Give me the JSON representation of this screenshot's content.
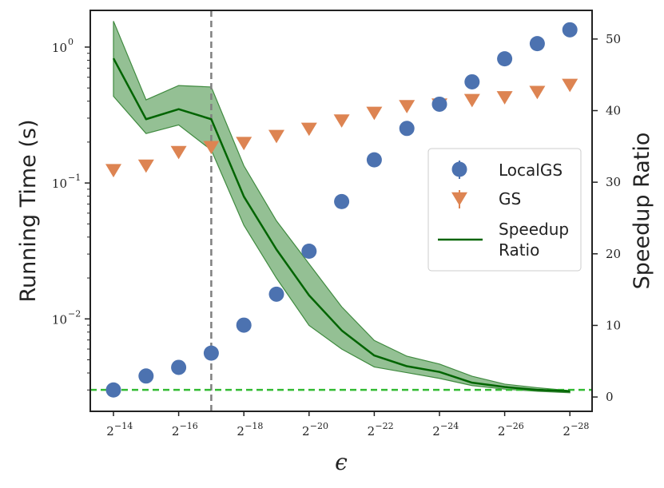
{
  "chart_data": {
    "type": "scatter",
    "x": [
      -14,
      -15,
      -16,
      -17,
      -18,
      -19,
      -20,
      -21,
      -22,
      -23,
      -24,
      -25,
      -26,
      -27,
      -28
    ],
    "x_tick_labels": [
      {
        "base": "2",
        "exp": "−14"
      },
      {
        "base": "2",
        "exp": "−16"
      },
      {
        "base": "2",
        "exp": "−18"
      },
      {
        "base": "2",
        "exp": "−20"
      },
      {
        "base": "2",
        "exp": "−22"
      },
      {
        "base": "2",
        "exp": "−24"
      },
      {
        "base": "2",
        "exp": "−26"
      },
      {
        "base": "2",
        "exp": "−28"
      }
    ],
    "xlabel": "ϵ",
    "ylabel_left": "Running Time (s)",
    "ylabel_right": "Speedup Ratio",
    "ylim_left_log10": [
      -2.68,
      0.27
    ],
    "ylim_right": [
      -2,
      54
    ],
    "y_left_ticks": [
      {
        "base": "10",
        "exp": "0",
        "log10": 0
      },
      {
        "base": "10",
        "exp": "−1",
        "log10": -1
      },
      {
        "base": "10",
        "exp": "−2",
        "log10": -2
      }
    ],
    "y_right_ticks": [
      "0",
      "10",
      "20",
      "30",
      "40",
      "50"
    ],
    "series": [
      {
        "name": "LocalGS",
        "axis": "left",
        "marker": "circle",
        "color": "#4c72b0",
        "values": [
          0.003,
          0.0038,
          0.0044,
          0.0056,
          0.009,
          0.0152,
          0.0315,
          0.073,
          0.148,
          0.252,
          0.38,
          0.555,
          0.82,
          1.06,
          1.34
        ]
      },
      {
        "name": "GS",
        "axis": "left",
        "marker": "triangle-down",
        "color": "#dd8452",
        "values": [
          0.125,
          0.135,
          0.17,
          0.185,
          0.198,
          0.223,
          0.252,
          0.29,
          0.33,
          0.37,
          0.38,
          0.41,
          0.43,
          0.47,
          0.53
        ]
      },
      {
        "name": "Speedup\nRatio",
        "axis": "right",
        "type": "line",
        "color": "#006400",
        "band_color": "#5a9e5a",
        "values": [
          47.3,
          38.8,
          40.2,
          38.8,
          28.0,
          20.6,
          14.2,
          9.3,
          5.8,
          4.3,
          3.5,
          2.0,
          1.4,
          1.0,
          0.8
        ],
        "band_low": [
          42.0,
          36.8,
          38.0,
          34.5,
          24.0,
          16.6,
          10.0,
          6.7,
          4.2,
          3.4,
          2.6,
          1.6,
          1.1,
          0.8,
          0.6
        ],
        "band_high": [
          52.5,
          41.5,
          43.5,
          43.3,
          32.3,
          24.6,
          18.6,
          12.6,
          7.9,
          5.7,
          4.6,
          2.9,
          1.8,
          1.3,
          0.9
        ]
      }
    ],
    "reference_lines": [
      {
        "axis": "x",
        "value": -17,
        "style": "dashed",
        "color": "#808080"
      },
      {
        "axis": "right",
        "value": 1,
        "style": "dashed",
        "color": "#33bb33"
      }
    ],
    "legend": {
      "position": "center-right",
      "entries": [
        {
          "label": "LocalGS",
          "marker": "circle-errorbar"
        },
        {
          "label": "GS",
          "marker": "triangle-errorbar"
        },
        {
          "label_lines": [
            "Speedup",
            "Ratio"
          ],
          "marker": "line"
        }
      ]
    }
  }
}
